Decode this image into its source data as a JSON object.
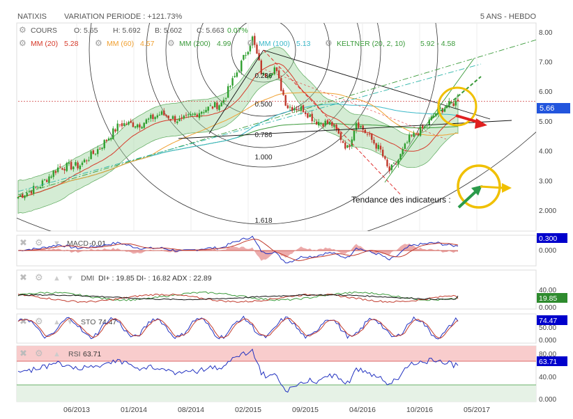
{
  "header": {
    "symbol": "NATIXIS",
    "variation": "VARIATION PERIODE : +121.73%",
    "period": "5 ANS - HEBDO"
  },
  "legend_row1": {
    "cours": "COURS",
    "open": "O: 5.65",
    "high": "H: 5.692",
    "low": "B: 5.602",
    "close": "C: 5.663",
    "change": "0.07%"
  },
  "legend_row2": [
    {
      "label": "MM (20)",
      "value": "5.28",
      "color": "#d63a2a"
    },
    {
      "label": "MM (60)",
      "value": "4.57",
      "color": "#f0a030"
    },
    {
      "label": "MM (200)",
      "value": "4.99",
      "color": "#3a9a3a"
    },
    {
      "label": "MM (100)",
      "value": "5.13",
      "color": "#3ab8c8"
    },
    {
      "label": "KELTNER (20, 2, 10)",
      "value": "5.92 - 4.58",
      "color": "#3a9a3a"
    }
  ],
  "fib_labels": [
    "0.236",
    "0.500",
    "0.786",
    "1.000",
    "1.618"
  ],
  "annotation": "Tendance des indicateurs :",
  "price_tag": "5.66",
  "colors": {
    "up": "#2e9e2e",
    "down": "#c0392b",
    "keltner_fill": "#9fd49f",
    "rsi_band": "#f8cccc",
    "badge": "#0000cc",
    "price_tag": "#2255dd",
    "circle": "#f0c000",
    "arrow_red": "#e02020",
    "arrow_green": "#2a9a4a",
    "arrow_yellow": "#f0c000"
  },
  "panels": {
    "macd": {
      "title": "MACD",
      "value": "-0.01",
      "badge": "0.300",
      "ticks": [
        "0.000"
      ]
    },
    "dmi": {
      "title": "DMI",
      "value": "DI+ : 19.85 DI- : 16.82 ADX : 22.89",
      "badge": "19.85",
      "ticks": [
        "40.00",
        "0.000"
      ]
    },
    "sto": {
      "title": "STO",
      "value": "74.47",
      "badge": "74.47",
      "ticks": [
        "50.00",
        "0.000"
      ]
    },
    "rsi": {
      "title": "RSI",
      "value": "63.71",
      "badge": "63.71",
      "ticks": [
        "80.00",
        "40.00",
        "0.000"
      ]
    }
  },
  "chart_data": {
    "type": "line",
    "x_tick_labels": [
      "06/2013",
      "01/2014",
      "08/2014",
      "02/2015",
      "09/2015",
      "04/2016",
      "10/2016",
      "05/2017"
    ],
    "y_tick_labels": [
      "8.00",
      "7.00",
      "6.00",
      "5.00",
      "4.00",
      "3.00",
      "2.000"
    ],
    "ylim": [
      1.3,
      8.3
    ],
    "close_anchors": [
      [
        0,
        2.45
      ],
      [
        0.05,
        2.8
      ],
      [
        0.1,
        3.45
      ],
      [
        0.15,
        3.5
      ],
      [
        0.2,
        4.1
      ],
      [
        0.25,
        4.9
      ],
      [
        0.3,
        4.9
      ],
      [
        0.35,
        5.25
      ],
      [
        0.4,
        5.0
      ],
      [
        0.45,
        5.35
      ],
      [
        0.5,
        5.6
      ],
      [
        0.55,
        7.0
      ],
      [
        0.575,
        7.8
      ],
      [
        0.6,
        6.5
      ],
      [
        0.63,
        6.8
      ],
      [
        0.66,
        5.5
      ],
      [
        0.7,
        5.4
      ],
      [
        0.73,
        5.0
      ],
      [
        0.77,
        4.9
      ],
      [
        0.81,
        4.05
      ],
      [
        0.83,
        5.0
      ],
      [
        0.86,
        4.5
      ],
      [
        0.89,
        4.0
      ],
      [
        0.91,
        3.3
      ],
      [
        0.93,
        3.6
      ],
      [
        0.96,
        4.4
      ],
      [
        1.0,
        4.8
      ],
      [
        1.03,
        5.35
      ],
      [
        1.06,
        5.55
      ],
      [
        1.08,
        5.663
      ]
    ],
    "sma20_last": 5.28,
    "sma60_last": 4.57,
    "sma100_last": 5.13,
    "sma200_last": 4.99,
    "keltner_last": [
      5.92,
      4.58
    ],
    "last_close": 5.663,
    "macd_last": -0.01,
    "dmi_last": {
      "di_plus": 19.85,
      "di_minus": 16.82,
      "adx": 22.89
    },
    "sto_last": 74.47,
    "rsi_last": 63.71
  }
}
